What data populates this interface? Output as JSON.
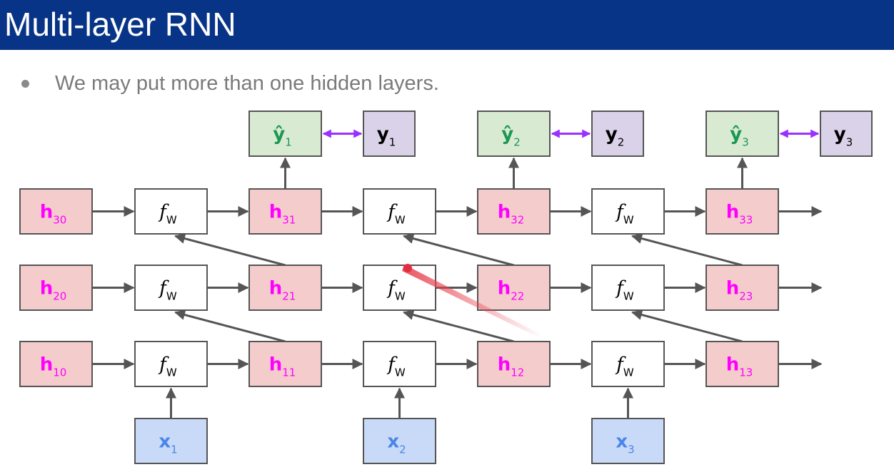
{
  "slide": {
    "title": "Multi-layer RNN",
    "bullet": "We may put more than one hidden layers."
  },
  "colors": {
    "title_bar": "#083487",
    "hidden": "#f4cccc",
    "hidden_text": "#ff00ff",
    "function": "#ffffff",
    "function_text": "#000000",
    "input": "#c9daf8",
    "input_text": "#4a86e8",
    "prediction": "#d9ead3",
    "prediction_text": "#1a9850",
    "target": "#d9d2e9",
    "target_text": "#000000",
    "compare_arrow": "#9b30ff"
  },
  "diagram": {
    "f_label": {
      "main": "f",
      "sub": "W"
    },
    "hidden_rows": [
      {
        "layer": "3",
        "cells": [
          {
            "main": "h",
            "sub": "30"
          },
          {
            "main": "h",
            "sub": "31"
          },
          {
            "main": "h",
            "sub": "32"
          },
          {
            "main": "h",
            "sub": "33"
          }
        ]
      },
      {
        "layer": "2",
        "cells": [
          {
            "main": "h",
            "sub": "20"
          },
          {
            "main": "h",
            "sub": "21"
          },
          {
            "main": "h",
            "sub": "22"
          },
          {
            "main": "h",
            "sub": "23"
          }
        ]
      },
      {
        "layer": "1",
        "cells": [
          {
            "main": "h",
            "sub": "10"
          },
          {
            "main": "h",
            "sub": "11"
          },
          {
            "main": "h",
            "sub": "12"
          },
          {
            "main": "h",
            "sub": "13"
          }
        ]
      }
    ],
    "inputs": [
      {
        "main": "x",
        "sub": "1"
      },
      {
        "main": "x",
        "sub": "2"
      },
      {
        "main": "x",
        "sub": "3"
      }
    ],
    "predictions": [
      {
        "main": "ŷ",
        "sub": "1"
      },
      {
        "main": "ŷ",
        "sub": "2"
      },
      {
        "main": "ŷ",
        "sub": "3"
      }
    ],
    "targets": [
      {
        "main": "y",
        "sub": "1"
      },
      {
        "main": "y",
        "sub": "2"
      },
      {
        "main": "y",
        "sub": "3"
      }
    ]
  }
}
